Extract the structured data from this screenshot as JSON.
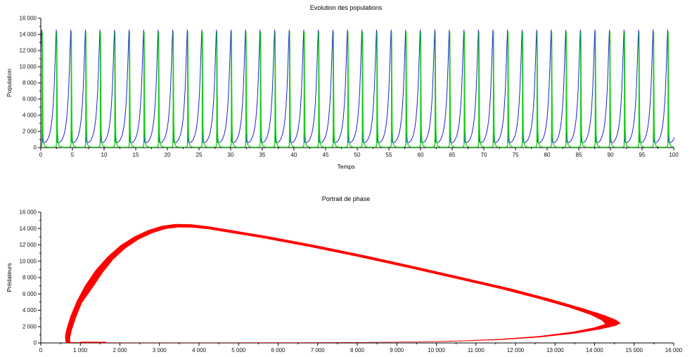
{
  "figure": {
    "background": "#ffffff",
    "axis_color": "#000000",
    "tick_label_color": "#111111"
  },
  "chart_data": [
    {
      "type": "line",
      "title": "Evolution des populations",
      "xlabel": "Temps",
      "ylabel": "Population",
      "xlim": [
        0,
        100
      ],
      "ylim": [
        0,
        16000
      ],
      "grid": false,
      "legend": "none",
      "x_ticks": {
        "values": [
          0,
          5,
          10,
          15,
          20,
          25,
          30,
          35,
          40,
          45,
          50,
          55,
          60,
          65,
          70,
          75,
          80,
          85,
          90,
          95,
          100
        ],
        "labels": [
          "0",
          "5",
          "10",
          "15",
          "20",
          "25",
          "30",
          "35",
          "40",
          "45",
          "50",
          "55",
          "60",
          "65",
          "70",
          "75",
          "80",
          "85",
          "90",
          "95",
          "100"
        ],
        "minor_step": 2.5
      },
      "y_ticks": {
        "values": [
          0,
          2000,
          4000,
          6000,
          8000,
          10000,
          12000,
          14000,
          16000
        ],
        "labels": [
          "0",
          "2 000",
          "4 000",
          "6 000",
          "8 000",
          "10 000",
          "12 000",
          "14 000",
          "16 000"
        ],
        "minor_step": 1000
      },
      "series": [
        {
          "name": "blue-curve",
          "color": "#2020d8",
          "width": 1,
          "period": 2.3,
          "t_start": -1.95,
          "t_end": 100,
          "peak_value": 14580,
          "min_value": 600,
          "cycle_t": [
            0,
            0.04,
            0.08,
            0.14,
            0.22,
            0.3,
            0.38,
            0.46,
            0.54,
            0.62,
            0.7,
            0.76,
            0.82,
            0.86,
            0.895,
            0.915,
            0.925,
            0.932,
            0.94,
            0.948,
            0.958,
            0.972,
            1.0
          ],
          "cycle_v": [
            640,
            612,
            600,
            625,
            760,
            950,
            1250,
            1700,
            2400,
            3500,
            5200,
            7200,
            10000,
            12300,
            14000,
            14580,
            13900,
            11200,
            6500,
            2700,
            1200,
            800,
            640
          ]
        },
        {
          "name": "green-curve",
          "color": "#14cf14",
          "width": 1.3,
          "period": 2.3,
          "t_start": -1.95,
          "t_end": 100,
          "peak_value": 14300,
          "min_value": 50,
          "cycle_t": [
            0,
            0.015,
            0.04,
            0.08,
            0.13,
            0.2,
            0.3,
            0.45,
            0.6,
            0.75,
            0.84,
            0.89,
            0.912,
            0.922,
            0.93,
            0.936,
            0.941,
            0.9445,
            0.947,
            0.951,
            0.957,
            0.964,
            0.972,
            0.981,
            0.99,
            1.0
          ],
          "cycle_v": [
            1900,
            1150,
            620,
            320,
            180,
            100,
            65,
            52,
            50,
            55,
            70,
            110,
            200,
            500,
            1800,
            5500,
            10500,
            13800,
            14300,
            13400,
            11500,
            9000,
            6500,
            4400,
            2900,
            1900
          ]
        }
      ]
    },
    {
      "type": "line",
      "title": "Portrait de phase",
      "xlabel": "",
      "ylabel": "Prédateurs",
      "xlim": [
        0,
        16000
      ],
      "ylim": [
        0,
        16000
      ],
      "grid": false,
      "legend": "none",
      "x_ticks": {
        "values": [
          0,
          1000,
          2000,
          3000,
          4000,
          5000,
          6000,
          7000,
          8000,
          9000,
          10000,
          11000,
          12000,
          13000,
          14000,
          15000,
          16000
        ],
        "labels": [
          "0",
          "1 000",
          "2 000",
          "3 000",
          "4 000",
          "5 000",
          "6 000",
          "7 000",
          "8 000",
          "9 000",
          "10 000",
          "11 000",
          "12 000",
          "13 000",
          "14 000",
          "15 000",
          "16 000"
        ],
        "minor_step": 500
      },
      "y_ticks": {
        "values": [
          0,
          2000,
          4000,
          6000,
          8000,
          10000,
          12000,
          14000,
          16000
        ],
        "labels": [
          "0",
          "2 000",
          "4 000",
          "6 000",
          "8 000",
          "10 000",
          "12 000",
          "14 000",
          "16 000"
        ],
        "minor_step": 1000
      },
      "band": {
        "name": "red-limit-cycle",
        "color": "#ff0000",
        "top_peak": [
          4200,
          14560
        ],
        "right_tip": [
          14660,
          2400
        ],
        "left_edge_x": 620,
        "bottom_edge_y": 50,
        "outer": [
          [
            640,
            25
          ],
          [
            1200,
            18
          ],
          [
            2500,
            16
          ],
          [
            4500,
            20
          ],
          [
            6500,
            28
          ],
          [
            8000,
            45
          ],
          [
            9300,
            85
          ],
          [
            10500,
            180
          ],
          [
            11600,
            360
          ],
          [
            12600,
            680
          ],
          [
            13500,
            1150
          ],
          [
            14150,
            1680
          ],
          [
            14520,
            2080
          ],
          [
            14660,
            2400
          ],
          [
            14550,
            2820
          ],
          [
            14240,
            3420
          ],
          [
            13650,
            4330
          ],
          [
            12850,
            5430
          ],
          [
            11900,
            6640
          ],
          [
            10780,
            7900
          ],
          [
            9550,
            9260
          ],
          [
            8250,
            10660
          ],
          [
            6950,
            11960
          ],
          [
            5750,
            13060
          ],
          [
            4850,
            13790
          ],
          [
            4250,
            14270
          ],
          [
            3800,
            14530
          ],
          [
            3400,
            14560
          ],
          [
            3060,
            14330
          ],
          [
            2720,
            13830
          ],
          [
            2360,
            13020
          ],
          [
            2010,
            11930
          ],
          [
            1680,
            10530
          ],
          [
            1380,
            8880
          ],
          [
            1120,
            7030
          ],
          [
            910,
            5130
          ],
          [
            750,
            3280
          ],
          [
            650,
            1730
          ],
          [
            612,
            780
          ],
          [
            622,
            230
          ],
          [
            640,
            25
          ]
        ],
        "inner": [
          [
            755,
            95
          ],
          [
            1300,
            60
          ],
          [
            2500,
            50
          ],
          [
            4500,
            54
          ],
          [
            6500,
            66
          ],
          [
            8000,
            90
          ],
          [
            9300,
            148
          ],
          [
            10500,
            268
          ],
          [
            11600,
            480
          ],
          [
            12600,
            840
          ],
          [
            13450,
            1380
          ],
          [
            14000,
            1900
          ],
          [
            14270,
            2320
          ],
          [
            14180,
            2760
          ],
          [
            13890,
            3460
          ],
          [
            13330,
            4380
          ],
          [
            12560,
            5440
          ],
          [
            11630,
            6610
          ],
          [
            10520,
            7840
          ],
          [
            9320,
            9160
          ],
          [
            8050,
            10520
          ],
          [
            6780,
            11780
          ],
          [
            5620,
            12830
          ],
          [
            4770,
            13500
          ],
          [
            4230,
            13930
          ],
          [
            3830,
            14120
          ],
          [
            3460,
            14140
          ],
          [
            3150,
            13940
          ],
          [
            2830,
            13460
          ],
          [
            2480,
            12680
          ],
          [
            2140,
            11590
          ],
          [
            1830,
            10200
          ],
          [
            1560,
            8570
          ],
          [
            1310,
            6760
          ],
          [
            1040,
            4900
          ],
          [
            890,
            3110
          ],
          [
            790,
            1640
          ],
          [
            745,
            740
          ],
          [
            740,
            330
          ],
          [
            755,
            95
          ]
        ]
      },
      "extra_lines": [
        {
          "name": "transient-segment",
          "color": "#ff0000",
          "width": 1.6,
          "points": [
            [
              1000,
              85
            ],
            [
              1650,
              85
            ]
          ]
        }
      ]
    }
  ]
}
